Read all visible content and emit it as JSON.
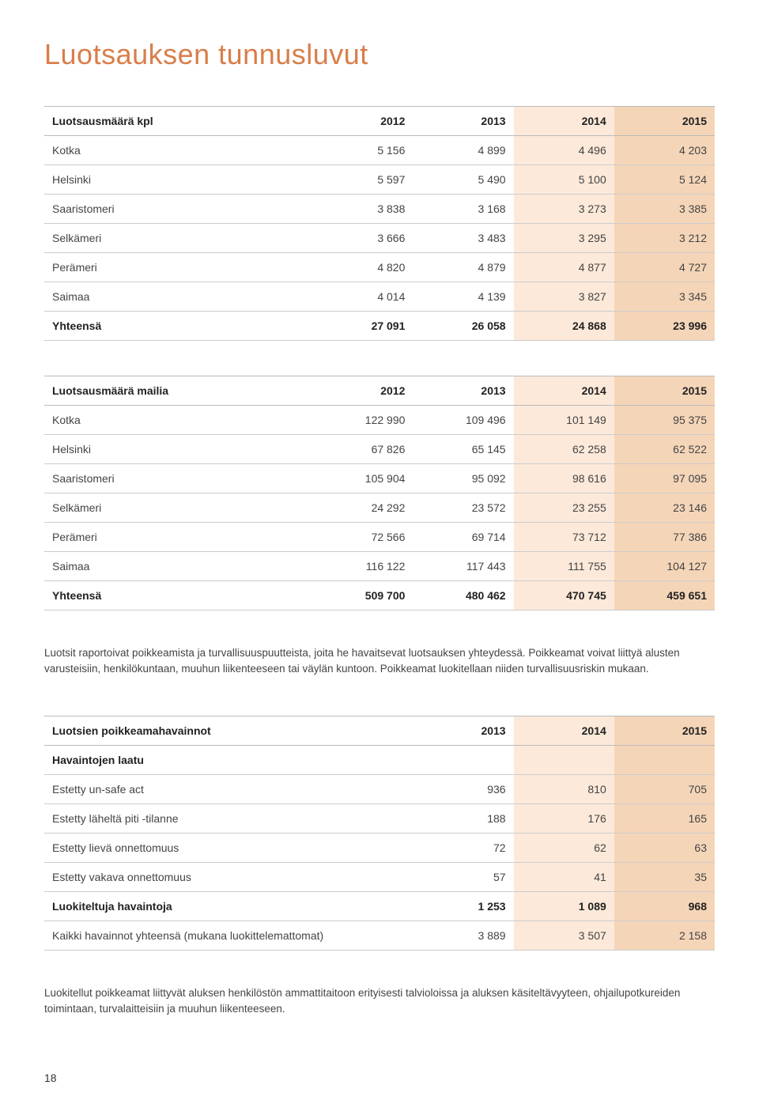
{
  "title": "Luotsauksen tunnusluvut",
  "table1": {
    "header": [
      "Luotsausmäärä kpl",
      "2012",
      "2013",
      "2014",
      "2015"
    ],
    "rows": [
      [
        "Kotka",
        "5 156",
        "4 899",
        "4 496",
        "4 203"
      ],
      [
        "Helsinki",
        "5 597",
        "5 490",
        "5 100",
        "5 124"
      ],
      [
        "Saaristomeri",
        "3 838",
        "3 168",
        "3 273",
        "3 385"
      ],
      [
        "Selkämeri",
        "3 666",
        "3 483",
        "3 295",
        "3 212"
      ],
      [
        "Perämeri",
        "4 820",
        "4 879",
        "4 877",
        "4 727"
      ],
      [
        "Saimaa",
        "4 014",
        "4 139",
        "3 827",
        "3 345"
      ]
    ],
    "total": [
      "Yhteensä",
      "27 091",
      "26 058",
      "24 868",
      "23 996"
    ],
    "highlight_cols": {
      "3": "hl-light",
      "4": "hl-dark"
    }
  },
  "table2": {
    "header": [
      "Luotsausmäärä mailia",
      "2012",
      "2013",
      "2014",
      "2015"
    ],
    "rows": [
      [
        "Kotka",
        "122 990",
        "109 496",
        "101 149",
        "95 375"
      ],
      [
        "Helsinki",
        "67 826",
        "65 145",
        "62 258",
        "62 522"
      ],
      [
        "Saaristomeri",
        "105 904",
        "95 092",
        "98 616",
        "97 095"
      ],
      [
        "Selkämeri",
        "24 292",
        "23 572",
        "23 255",
        "23 146"
      ],
      [
        "Perämeri",
        "72 566",
        "69 714",
        "73 712",
        "77 386"
      ],
      [
        "Saimaa",
        "116 122",
        "117 443",
        "111 755",
        "104 127"
      ]
    ],
    "total": [
      "Yhteensä",
      "509 700",
      "480 462",
      "470 745",
      "459 651"
    ],
    "highlight_cols": {
      "3": "hl-light",
      "4": "hl-dark"
    }
  },
  "paragraph1": "Luotsit raportoivat poikkeamista ja turvallisuuspuutteista, joita he havaitsevat luotsauksen yhteydessä. Poikkeamat voivat liittyä alusten varusteisiin, henkilökuntaan, muuhun liikenteeseen tai väylän kuntoon. Poikkeamat luokitellaan niiden turvallisuusriskin mukaan.",
  "table3": {
    "header": [
      "Luotsien poikkeamahavainnot",
      "2013",
      "2014",
      "2015"
    ],
    "subhead": "Havaintojen laatu",
    "rows": [
      [
        "Estetty un-safe act",
        "936",
        "810",
        "705"
      ],
      [
        "Estetty läheltä piti -tilanne",
        "188",
        "176",
        "165"
      ],
      [
        "Estetty lievä onnettomuus",
        "72",
        "62",
        "63"
      ],
      [
        "Estetty vakava onnettomuus",
        "57",
        "41",
        "35"
      ]
    ],
    "total1": [
      "Luokiteltuja havaintoja",
      "1 253",
      "1 089",
      "968"
    ],
    "total2": [
      "Kaikki havainnot yhteensä (mukana luokittelemattomat)",
      "3 889",
      "3 507",
      "2 158"
    ],
    "highlight_cols": {
      "2": "hl-light",
      "3": "hl-dark"
    }
  },
  "paragraph2": "Luokitellut poikkeamat liittyvät aluksen henkilöstön ammattitaitoon erityisesti talvioloissa ja aluksen käsiteltävyyteen, ohjailupotkureiden toimintaan, turvalaitteisiin ja muuhun liikenteeseen.",
  "page_number": "18",
  "colors": {
    "heading": "#d97e4a",
    "hl_light": "#fce9d9",
    "hl_dark": "#f5d5b8",
    "border": "#cccccc",
    "text": "#444444"
  }
}
